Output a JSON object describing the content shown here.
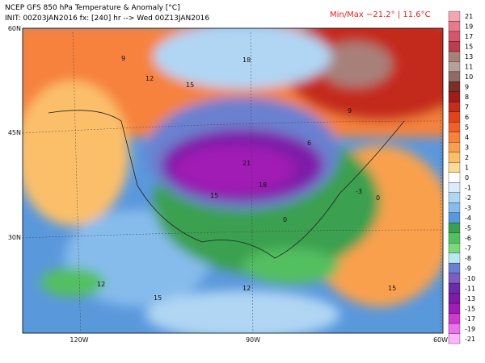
{
  "header": {
    "title": "NCEP GFS 850 hPa Temperature & Anomaly [°C]",
    "init": "INIT: 00Z03JAN2016 fx: [240] hr --> Wed 00Z13JAN2016",
    "minmax": "Min/Max −21.2° | 11.6°C"
  },
  "map": {
    "lat_labels": [
      "60N",
      "45N",
      "30N"
    ],
    "lon_labels": [
      "120W",
      "90W",
      "60W"
    ],
    "contour_labels": [
      "9",
      "18",
      "12",
      "15",
      "21",
      "18",
      "15",
      "0",
      "-3",
      "0",
      "12",
      "15",
      "9",
      "6",
      "12",
      "15"
    ]
  },
  "colorbar": {
    "labels": [
      "21",
      "19",
      "17",
      "15",
      "13",
      "11",
      "10",
      "9",
      "8",
      "7",
      "6",
      "5",
      "4",
      "3",
      "2",
      "1",
      "0",
      "-1",
      "-2",
      "-3",
      "-4",
      "-5",
      "-6",
      "-7",
      "-8",
      "-9",
      "-10",
      "-11",
      "-13",
      "-15",
      "-17",
      "-19",
      "-21"
    ],
    "colors": [
      "#f2a6b4",
      "#e67a8e",
      "#d2566c",
      "#bc3c50",
      "#a8807a",
      "#b4a29a",
      "#8c6c64",
      "#7a3026",
      "#a01c1c",
      "#c42c1c",
      "#e0441c",
      "#f0602a",
      "#f6823c",
      "#f9a04e",
      "#fbbf6a",
      "#fcdb92",
      "#ffffff",
      "#d8ecfa",
      "#b0d6f4",
      "#86bcec",
      "#5a98dc",
      "#3aa050",
      "#52c060",
      "#7cd878",
      "#b8e8f0",
      "#6a80d0",
      "#7e5cc0",
      "#6a2ca8",
      "#7e1aa8",
      "#a01cb4",
      "#cc3ccc",
      "#ee70ee",
      "#fcb4fc"
    ]
  }
}
